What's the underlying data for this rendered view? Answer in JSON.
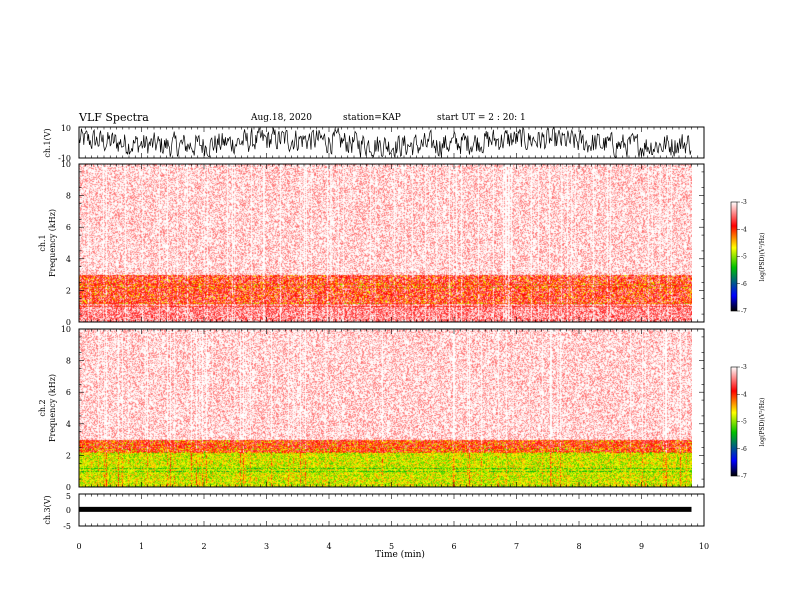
{
  "header": {
    "title": "VLF Spectra",
    "date": "Aug.18, 2020",
    "station": "station=KAP",
    "start": "start UT = 2 : 20: 1"
  },
  "chart_data": [
    {
      "type": "line",
      "panel": "ch1-waveform",
      "ylabel": "ch.1(V)",
      "ylim": [
        -10,
        10
      ],
      "yticks": [
        "10",
        "-10"
      ],
      "xlim": [
        0,
        10
      ],
      "data_extent_min": 9.8,
      "description_color": "#000000"
    },
    {
      "type": "heatmap",
      "panel": "ch1-spectrogram",
      "ylabel": "ch.1\nFrequency (kHz)",
      "ylabel_line1": "ch.1",
      "ylabel_line2": "Frequency (kHz)",
      "ylim": [
        0,
        10
      ],
      "yticks": [
        "0",
        "2",
        "4",
        "6",
        "8",
        "10"
      ],
      "xlim": [
        0,
        10
      ],
      "data_extent_min": 9.8,
      "colorbar": {
        "label": "log(PSD)(V²/Hz)",
        "range": [
          -7,
          -3
        ],
        "ticks": [
          "-3",
          "-4",
          "-5",
          "-6",
          "-7"
        ],
        "colors": [
          "#000000",
          "#0000ff",
          "#00c000",
          "#ffff00",
          "#ff0000",
          "#ffffff"
        ]
      },
      "bands": [
        {
          "kind": "low",
          "from_khz": 0,
          "to_khz": 1.2,
          "level": -3.4
        },
        {
          "kind": "mid",
          "from_khz": 1.2,
          "to_khz": 3.0,
          "level": -3.6
        },
        {
          "kind": "upper",
          "from_khz": 3.0,
          "to_khz": 10,
          "level": -3.1
        }
      ]
    },
    {
      "type": "heatmap",
      "panel": "ch2-spectrogram",
      "ylabel_line1": "ch.2",
      "ylabel_line2": "Frequency (kHz)",
      "ylim": [
        0,
        10
      ],
      "yticks": [
        "0",
        "2",
        "4",
        "6",
        "8",
        "10"
      ],
      "xlim": [
        0,
        10
      ],
      "data_extent_min": 9.8,
      "colorbar": {
        "label": "log(PSD)(V²/Hz)",
        "range": [
          -7,
          -3
        ],
        "ticks": [
          "-3",
          "-4",
          "-5",
          "-6",
          "-7"
        ]
      },
      "bands": [
        {
          "kind": "low",
          "from_khz": 0,
          "to_khz": 2.2,
          "level": -4.8
        },
        {
          "kind": "mid",
          "from_khz": 2.2,
          "to_khz": 3.0,
          "level": -3.8
        },
        {
          "kind": "upper",
          "from_khz": 3.0,
          "to_khz": 10,
          "level": -3.1
        }
      ]
    },
    {
      "type": "line",
      "panel": "ch3-waveform",
      "ylabel": "ch.3(V)",
      "ylim": [
        -5,
        5
      ],
      "yticks": [
        "5",
        "0",
        "-5"
      ],
      "xlim": [
        0,
        10
      ],
      "data_extent_min": 9.8,
      "level_v": 0.2
    }
  ],
  "xaxis": {
    "label": "Time (min)",
    "ticks": [
      "0",
      "1",
      "2",
      "3",
      "4",
      "5",
      "6",
      "7",
      "8",
      "9",
      "10"
    ]
  }
}
